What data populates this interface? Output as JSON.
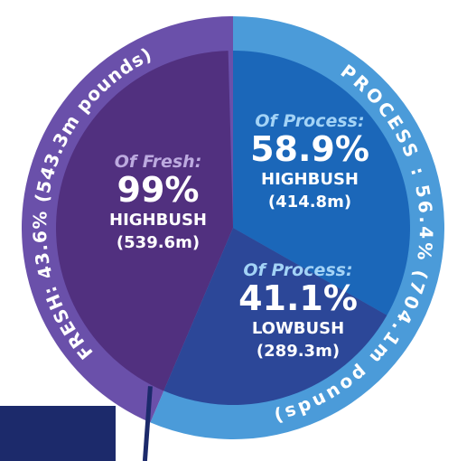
{
  "chart_data": {
    "type": "pie",
    "outer": {
      "categories": [
        "FRESH:",
        "PROCESS :"
      ],
      "values": [
        43.6,
        56.4
      ],
      "value_labels": [
        "43.6%",
        "56.4%"
      ],
      "amount_labels": [
        "(543.3m pounds)",
        "(704.1m pounds)"
      ],
      "colors": [
        "#6a50aa",
        "#4b9bd9"
      ]
    },
    "inner": [
      {
        "headers": [
          "Of Fresh:"
        ],
        "categories": [
          "HIGHBUSH"
        ],
        "values": [
          99
        ],
        "value_labels": [
          "99%"
        ],
        "amount_labels": [
          "(539.6m)"
        ],
        "colors": [
          "#51307f"
        ],
        "header_color": "#bcaadf"
      },
      {
        "headers": [
          "Of Process:",
          "Of Process:"
        ],
        "categories": [
          "HIGHBUSH",
          "LOWBUSH"
        ],
        "values": [
          58.9,
          41.1
        ],
        "value_labels": [
          "58.9%",
          "41.1%"
        ],
        "amount_labels": [
          "(414.8m)",
          "(289.3m)"
        ],
        "colors": [
          "#1b67b9",
          "#2c4798"
        ],
        "header_color": "#a3d3f6"
      }
    ]
  }
}
